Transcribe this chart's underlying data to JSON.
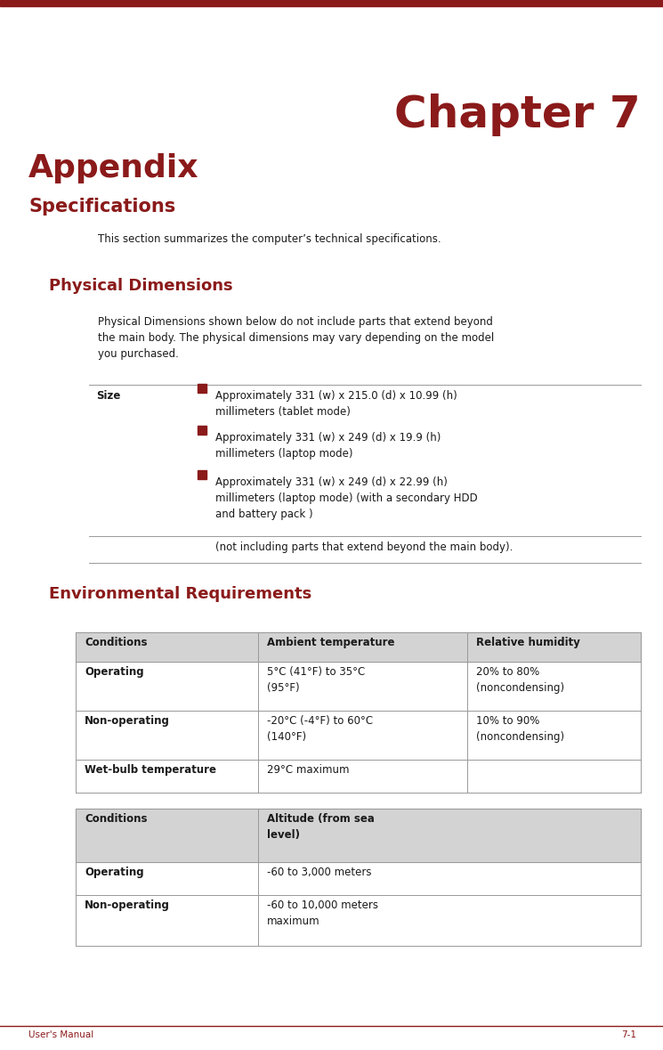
{
  "page_bg": "#ffffff",
  "top_bar_color": "#8B1A1A",
  "chapter_text": "Chapter 7",
  "chapter_color": "#8B1A1A",
  "chapter_fontsize": 36,
  "appendix_text": "Appendix",
  "appendix_color": "#8B1A1A",
  "appendix_fontsize": 26,
  "specifications_text": "Specifications",
  "specifications_color": "#8B1A1A",
  "specifications_fontsize": 15,
  "intro_text": "This section summarizes the computer’s technical specifications.",
  "physical_dim_title": "Physical Dimensions",
  "physical_dim_color": "#8B1A1A",
  "physical_dim_fontsize": 13,
  "physical_desc": "Physical Dimensions shown below do not include parts that extend beyond\nthe main body. The physical dimensions may vary depending on the model\nyou purchased.",
  "size_label": "Size",
  "bullet_items": [
    "Approximately 331 (w) x 215.0 (d) x 10.99 (h)\nmillimeters (tablet mode)",
    "Approximately 331 (w) x 249 (d) x 19.9 (h)\nmillimeters (laptop mode)",
    "Approximately 331 (w) x 249 (d) x 22.99 (h)\nmillimeters (laptop mode) (with a secondary HDD\nand battery pack )"
  ],
  "not_including_text": "(not including parts that extend beyond the main body).",
  "env_req_title": "Environmental Requirements",
  "env_req_color": "#8B1A1A",
  "env_req_fontsize": 13,
  "table1_header": [
    "Conditions",
    "Ambient temperature",
    "Relative humidity"
  ],
  "table1_rows": [
    [
      "Operating",
      "5°C (41°F) to 35°C\n(95°F)",
      "20% to 80%\n(noncondensing)"
    ],
    [
      "Non-operating",
      "-20°C (-4°F) to 60°C\n(140°F)",
      "10% to 90%\n(noncondensing)"
    ],
    [
      "Wet-bulb temperature",
      "29°C maximum",
      ""
    ]
  ],
  "table2_header": [
    "Conditions",
    "Altitude (from sea\nlevel)",
    ""
  ],
  "table2_rows": [
    [
      "Operating",
      "-60 to 3,000 meters",
      ""
    ],
    [
      "Non-operating",
      "-60 to 10,000 meters\nmaximum",
      ""
    ]
  ],
  "footer_left": "User's Manual",
  "footer_right": "7-1",
  "footer_color": "#8B1A1A",
  "text_color": "#1a1a1a",
  "table_header_bg": "#d3d3d3",
  "table_line_color": "#999999",
  "bullet_color": "#8B1A1A"
}
